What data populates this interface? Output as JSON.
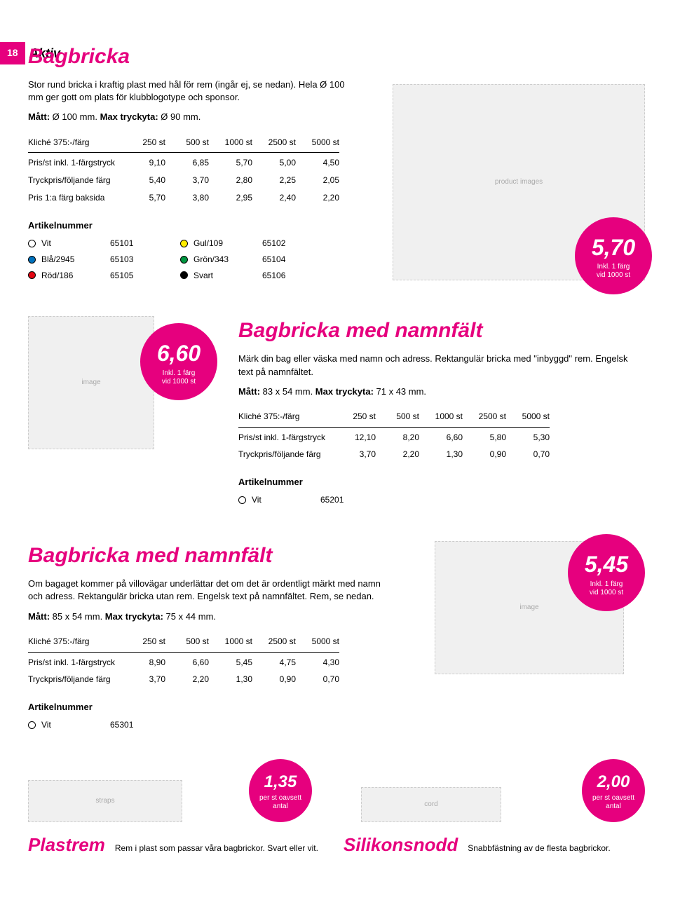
{
  "page": {
    "number": "18",
    "section": "Aktiv"
  },
  "bagbricka": {
    "title": "Bagbricka",
    "desc": "Stor rund bricka i kraftig plast med hål för rem (ingår ej, se nedan). Hela Ø 100 mm ger gott om plats för klubblogotype och sponsor.",
    "spec_matt_label": "Mått:",
    "spec_matt": " Ø 100 mm. ",
    "spec_tryck_label": "Max tryckyta:",
    "spec_tryck": " Ø 90 mm.",
    "table": {
      "header": [
        "Kliché 375:-/färg",
        "250 st",
        "500 st",
        "1000 st",
        "2500 st",
        "5000 st"
      ],
      "rows": [
        [
          "Pris/st inkl. 1-färgstryck",
          "9,10",
          "6,85",
          "5,70",
          "5,00",
          "4,50"
        ],
        [
          "Tryckpris/följande färg",
          "5,40",
          "3,70",
          "2,80",
          "2,25",
          "2,05"
        ],
        [
          "Pris 1:a färg baksida",
          "5,70",
          "3,80",
          "2,95",
          "2,40",
          "2,20"
        ]
      ]
    },
    "art_header": "Artikelnummer",
    "articles_left": [
      {
        "color": "#ffffff",
        "name": "Vit",
        "code": "65101"
      },
      {
        "color": "#0071bc",
        "name": "Blå/2945",
        "code": "65103"
      },
      {
        "color": "#e30613",
        "name": "Röd/186",
        "code": "65105"
      }
    ],
    "articles_right": [
      {
        "color": "#ffed00",
        "name": "Gul/109",
        "code": "65102"
      },
      {
        "color": "#009640",
        "name": "Grön/343",
        "code": "65104"
      },
      {
        "color": "#000000",
        "name": "Svart",
        "code": "65106"
      }
    ],
    "badge": {
      "price": "5,70",
      "line1": "Inkl. 1 färg",
      "line2": "vid 1000 st"
    }
  },
  "bagbricka_namn1": {
    "title": "Bagbricka med namnfält",
    "desc": "Märk din bag eller väska med namn och adress. Rektangulär bricka med \"inbyggd\" rem. Engelsk text på namnfältet.",
    "spec_matt_label": "Mått:",
    "spec_matt": " 83 x 54 mm. ",
    "spec_tryck_label": "Max tryckyta:",
    "spec_tryck": " 71 x 43 mm.",
    "table": {
      "header": [
        "Kliché 375:-/färg",
        "250 st",
        "500 st",
        "1000 st",
        "2500 st",
        "5000 st"
      ],
      "rows": [
        [
          "Pris/st inkl. 1-färgstryck",
          "12,10",
          "8,20",
          "6,60",
          "5,80",
          "5,30"
        ],
        [
          "Tryckpris/följande färg",
          "3,70",
          "2,20",
          "1,30",
          "0,90",
          "0,70"
        ]
      ]
    },
    "art_header": "Artikelnummer",
    "articles": [
      {
        "color": "#ffffff",
        "name": "Vit",
        "code": "65201"
      }
    ],
    "badge": {
      "price": "6,60",
      "line1": "Inkl. 1 färg",
      "line2": "vid 1000 st"
    }
  },
  "bagbricka_namn2": {
    "title": "Bagbricka med namnfält",
    "desc": "Om bagaget kommer på villovägar underlättar det om det är ordentligt märkt med namn och adress. Rektangulär bricka utan rem. Engelsk text på namnfältet. Rem, se nedan.",
    "spec_matt_label": "Mått:",
    "spec_matt": " 85 x 54 mm. ",
    "spec_tryck_label": "Max tryckyta:",
    "spec_tryck": " 75 x 44 mm.",
    "table": {
      "header": [
        "Kliché 375:-/färg",
        "250 st",
        "500 st",
        "1000 st",
        "2500 st",
        "5000 st"
      ],
      "rows": [
        [
          "Pris/st inkl. 1-färgstryck",
          "8,90",
          "6,60",
          "5,45",
          "4,75",
          "4,30"
        ],
        [
          "Tryckpris/följande färg",
          "3,70",
          "2,20",
          "1,30",
          "0,90",
          "0,70"
        ]
      ]
    },
    "art_header": "Artikelnummer",
    "articles": [
      {
        "color": "#ffffff",
        "name": "Vit",
        "code": "65301"
      }
    ],
    "badge": {
      "price": "5,45",
      "line1": "Inkl. 1 färg",
      "line2": "vid 1000 st"
    }
  },
  "plastrem": {
    "title": "Plastrem",
    "desc": "Rem i plast som passar våra bagbrickor. Svart eller vit.",
    "badge": {
      "price": "1,35",
      "line1": "per st oavsett",
      "line2": "antal"
    }
  },
  "silikonsnodd": {
    "title": "Silikonsnodd",
    "desc": "Snabbfästning av de flesta bagbrickor.",
    "badge": {
      "price": "2,00",
      "line1": "per st oavsett",
      "line2": "antal"
    }
  }
}
